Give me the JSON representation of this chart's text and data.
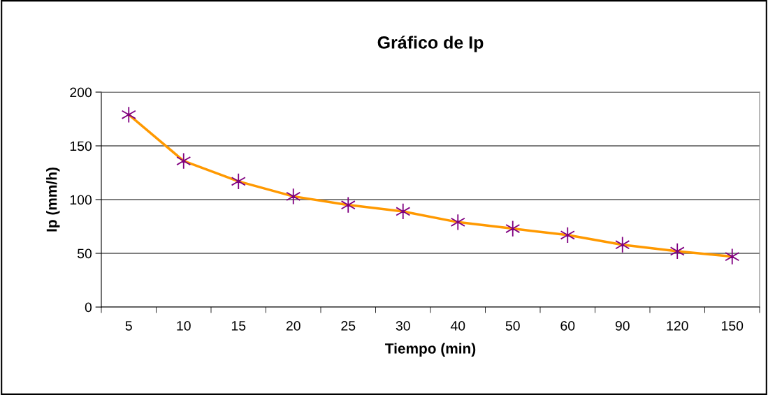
{
  "chart_data": {
    "type": "line",
    "title": "Gráfico de Ip",
    "xlabel": "Tiempo (min)",
    "ylabel": "Ip (mm/h)",
    "categories": [
      "5",
      "10",
      "15",
      "20",
      "25",
      "30",
      "40",
      "50",
      "60",
      "90",
      "120",
      "150"
    ],
    "series": [
      {
        "color": "#ff9900",
        "colors": [
          "#800080",
          "#800080",
          "#800080",
          "#800080",
          "#800080",
          "#800080",
          "#800080",
          "#800080",
          "#800080",
          "#800080",
          "#800080",
          "#800080"
        ],
        "values": [
          179,
          136,
          117,
          103,
          95,
          89,
          79,
          73,
          67,
          58,
          52,
          47
        ]
      }
    ],
    "ylim": [
      0,
      200
    ],
    "yticks": [
      0,
      50,
      100,
      150,
      200
    ],
    "grid": "y",
    "marker": "cross",
    "line_style": "solid",
    "legend": false
  }
}
